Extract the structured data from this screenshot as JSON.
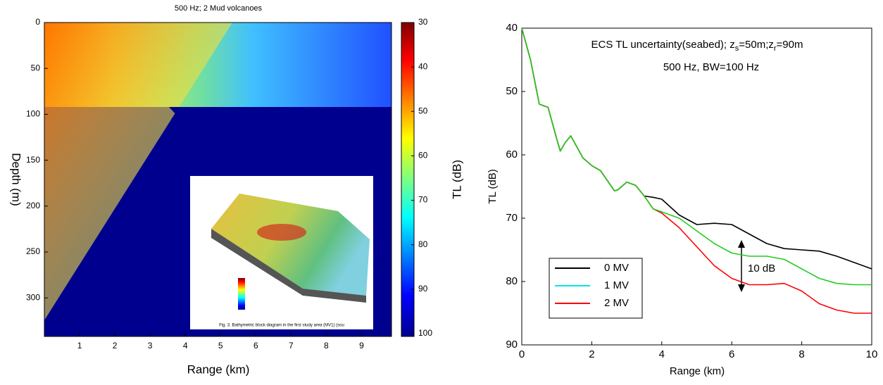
{
  "chart_data": [
    {
      "type": "heatmap",
      "title": "500 Hz; 2 Mud volcanoes",
      "x_label": "Range (km)",
      "y_label": "Depth (m)",
      "xlim": [
        0,
        9.85
      ],
      "xticks": [
        1,
        2,
        3,
        4,
        5,
        6,
        7,
        8,
        9
      ],
      "ylim": [
        0,
        342
      ],
      "yticks": [
        0,
        50,
        100,
        150,
        200,
        250,
        300
      ],
      "y_reversed": true,
      "colorbar_label": "TL (dB)",
      "clim": [
        30,
        100
      ],
      "cticks": [
        30,
        40,
        50,
        60,
        70,
        80,
        90,
        100
      ],
      "inset_caption": "Fig. 3. Bathymetric block diagram in the first study area (MV1) (sou"
    },
    {
      "type": "line",
      "title": "ECS TL uncertainty(seabed); z_s=50m;z_r=90m",
      "title_parts": [
        "ECS TL uncertainty(seabed); z",
        "s",
        "=50m;z",
        "r",
        "=90m"
      ],
      "annotations": [
        "500 Hz, BW=100 Hz",
        "10 dB"
      ],
      "x_label": "Range (km)",
      "y_label": "TL (dB)",
      "xlim": [
        0,
        10
      ],
      "xticks": [
        0,
        2,
        4,
        6,
        8,
        10
      ],
      "ylim": [
        40,
        90
      ],
      "yticks": [
        40,
        50,
        60,
        70,
        80,
        90
      ],
      "y_reversed": true,
      "x": [
        0,
        0.25,
        0.5,
        0.75,
        1,
        1.1,
        1.25,
        1.4,
        1.5,
        1.75,
        2,
        2.25,
        2.5,
        2.65,
        2.75,
        3,
        3.25,
        3.5,
        3.75,
        4,
        4.5,
        5,
        5.5,
        6,
        6.5,
        7,
        7.5,
        8,
        8.5,
        9,
        9.5,
        10
      ],
      "legend_position": "lower left",
      "series": [
        {
          "name": "0 MV",
          "color": "#000000",
          "legend_color": "#000000",
          "values": [
            40,
            45,
            52,
            52.5,
            57.5,
            59.4,
            58,
            57,
            58,
            60.5,
            61.7,
            62.5,
            64.5,
            65.7,
            65.5,
            64.3,
            64.8,
            66.5,
            66.7,
            67,
            69.5,
            71,
            70.8,
            71,
            72.5,
            74,
            74.8,
            75,
            75.2,
            76,
            77,
            78
          ]
        },
        {
          "name": "1 MV",
          "color": "#22cc22",
          "legend_color": "#00e5ee",
          "values": [
            40,
            45,
            52,
            52.5,
            57.5,
            59.4,
            58,
            57,
            58,
            60.5,
            61.7,
            62.5,
            64.5,
            65.7,
            65.5,
            64.3,
            64.8,
            66.5,
            68.5,
            69,
            70,
            72,
            74,
            75.5,
            76,
            76,
            76.5,
            78,
            79.5,
            80.3,
            80.5,
            80.5
          ]
        },
        {
          "name": "2 MV",
          "color": "#ff0000",
          "legend_color": "#ff0000",
          "values": [
            40,
            45,
            52,
            52.5,
            57.5,
            59.4,
            58,
            57,
            58,
            60.5,
            61.7,
            62.5,
            64.5,
            65.7,
            65.5,
            64.3,
            64.8,
            66.5,
            68.5,
            69.2,
            71.5,
            74.5,
            77.5,
            79.5,
            80.5,
            80.5,
            80.3,
            81.5,
            83.5,
            84.5,
            85,
            85
          ]
        }
      ]
    }
  ]
}
